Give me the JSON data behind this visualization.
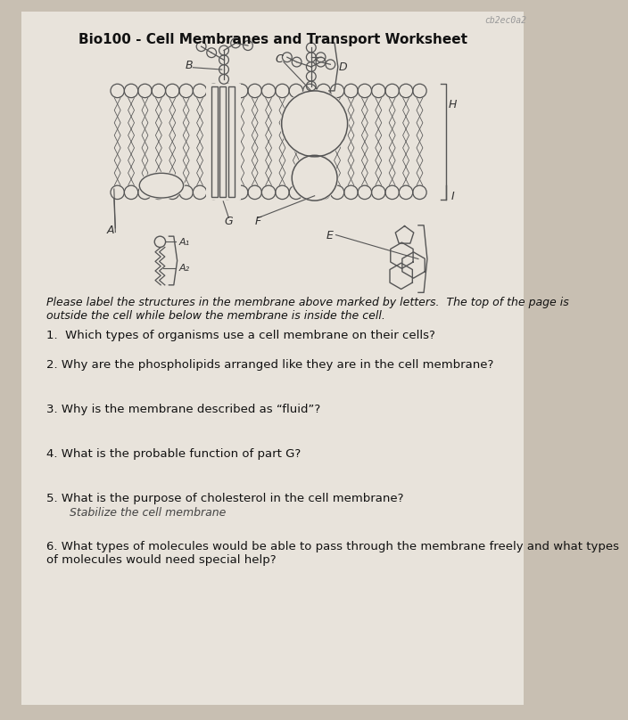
{
  "title": "Bio100 - Cell Membranes and Transport Worksheet",
  "bg_color": "#c8bfb2",
  "paper_color": "#e8e3db",
  "instructions": "Please label the structures in the membrane above marked by letters.  The top of the page is\noutside the cell while below the membrane is inside the cell.",
  "q1": "1.  Which types of organisms use a cell membrane on their cells?",
  "q2": "2. Why are the phospholipids arranged like they are in the cell membrane?",
  "q3": "3. Why is the membrane described as “fluid”?",
  "q4": "4. What is the probable function of part G?",
  "q5a": "5. What is the purpose of cholesterol in the cell membrane?",
  "q5b": "    Stabilize the cell membrane",
  "q6": "6. What types of molecules would be able to pass through the membrane freely and what types\nof molecules would need special help?",
  "watermark": "cb2ec0a2",
  "line_color": "#555555",
  "label_color": "#333333"
}
